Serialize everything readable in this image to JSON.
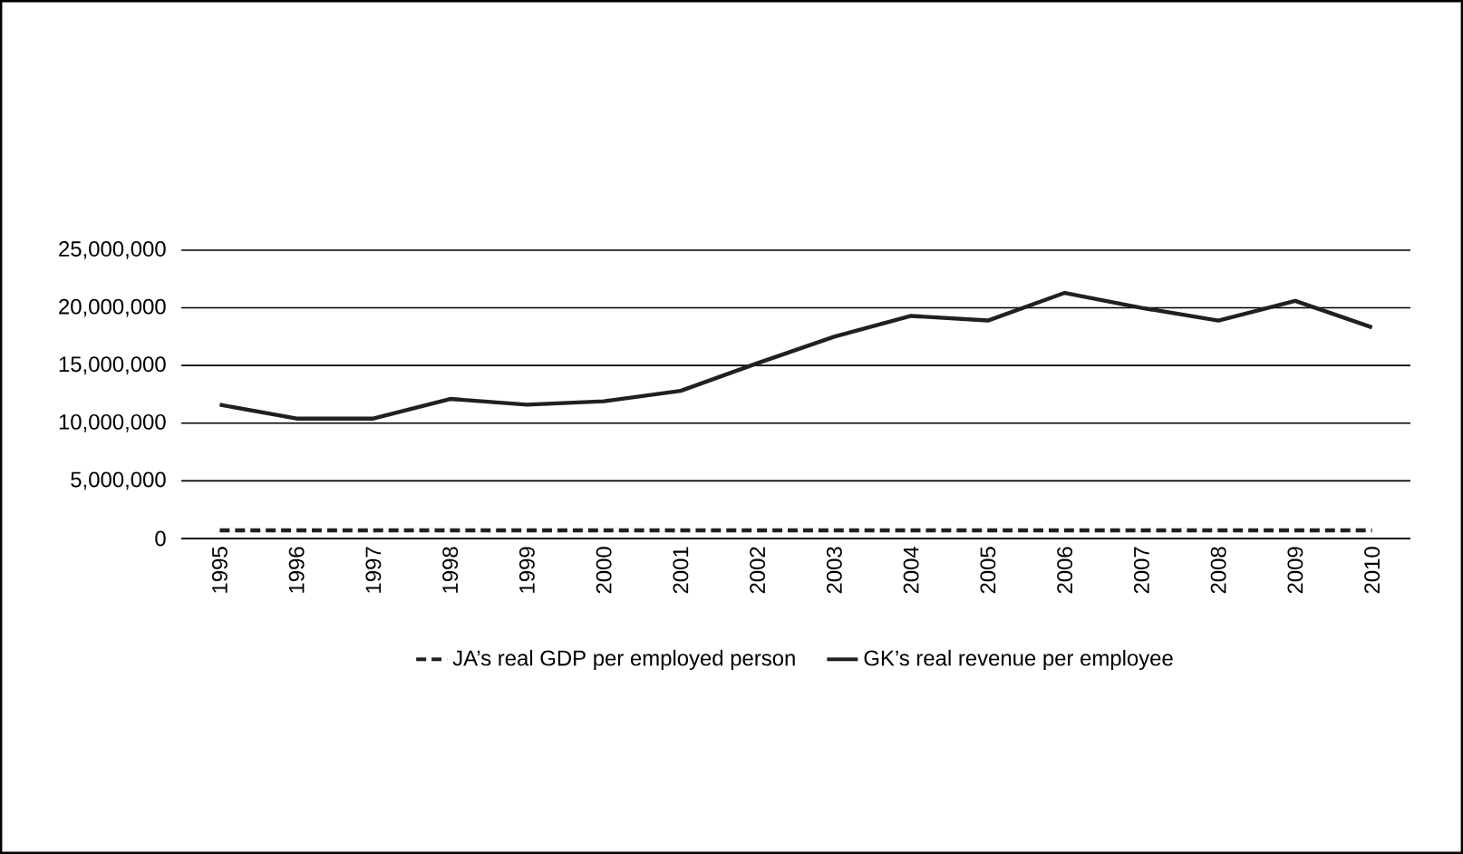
{
  "chart_data": {
    "type": "line",
    "categories": [
      "1995",
      "1996",
      "1997",
      "1998",
      "1999",
      "2000",
      "2001",
      "2002",
      "2003",
      "2004",
      "2005",
      "2006",
      "2007",
      "2008",
      "2009",
      "2010"
    ],
    "series": [
      {
        "name": "JA’s real GDP per employed person",
        "color": "#231f20",
        "line_style": "dashed",
        "values": [
          700000,
          700000,
          700000,
          700000,
          700000,
          700000,
          700000,
          700000,
          700000,
          700000,
          700000,
          700000,
          700000,
          700000,
          700000,
          700000
        ]
      },
      {
        "name": "GK’s real revenue per employee",
        "color": "#231f20",
        "line_style": "solid",
        "values": [
          11600000,
          10400000,
          10400000,
          12100000,
          11600000,
          11900000,
          12800000,
          15200000,
          17500000,
          19300000,
          18900000,
          21300000,
          20000000,
          18900000,
          20600000,
          18300000
        ]
      }
    ],
    "ylim": [
      0,
      25000000
    ],
    "yticks": [
      0,
      {
        "value": 5000000,
        "label": "5,000,000"
      },
      {
        "value": 10000000,
        "label": "10,000,000"
      },
      {
        "value": 15000000,
        "label": "15,000,000"
      },
      {
        "value": 20000000,
        "label": "20,000,000"
      },
      {
        "value": 25000000,
        "label": "25,000,000"
      }
    ],
    "grid": "y",
    "legend": "bottom",
    "marker": "none"
  }
}
